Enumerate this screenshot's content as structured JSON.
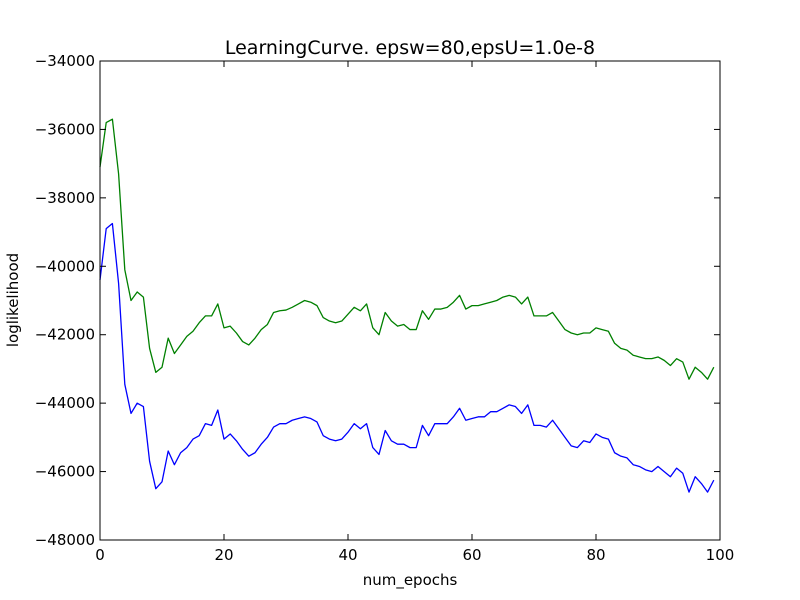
{
  "chart_data": {
    "type": "line",
    "title": "LearningCurve. epsw=80,epsU=1.0e-8",
    "xlabel": "num_epochs",
    "ylabel": "loglikelihood",
    "xlim": [
      0,
      100
    ],
    "ylim": [
      -48000,
      -34000
    ],
    "xticks": [
      0,
      20,
      40,
      60,
      80,
      100
    ],
    "yticks": [
      -48000,
      -46000,
      -44000,
      -42000,
      -40000,
      -38000,
      -36000,
      -34000
    ],
    "xtick_labels": [
      "0",
      "20",
      "40",
      "60",
      "80",
      "100"
    ],
    "ytick_labels": [
      "−48000",
      "−46000",
      "−44000",
      "−42000",
      "−40000",
      "−38000",
      "−36000",
      "−34000"
    ],
    "grid": false,
    "legend": "none",
    "series": [
      {
        "color": "#0000ff",
        "x": [
          0,
          1,
          2,
          3,
          4,
          5,
          6,
          7,
          8,
          9,
          10,
          11,
          12,
          13,
          14,
          15,
          16,
          17,
          18,
          19,
          20,
          21,
          22,
          23,
          24,
          25,
          26,
          27,
          28,
          29,
          30,
          31,
          32,
          33,
          34,
          35,
          36,
          37,
          38,
          39,
          40,
          41,
          42,
          43,
          44,
          45,
          46,
          47,
          48,
          49,
          50,
          51,
          52,
          53,
          54,
          55,
          56,
          57,
          58,
          59,
          60,
          61,
          62,
          63,
          64,
          65,
          66,
          67,
          68,
          69,
          70,
          71,
          72,
          73,
          74,
          75,
          76,
          77,
          78,
          79,
          80,
          81,
          82,
          83,
          84,
          85,
          86,
          87,
          88,
          89,
          90,
          91,
          92,
          93,
          94,
          95,
          96,
          97,
          98,
          99
        ],
        "y": [
          -40400,
          -38900,
          -38750,
          -40500,
          -43450,
          -44300,
          -44000,
          -44100,
          -45700,
          -46500,
          -46300,
          -45400,
          -45800,
          -45450,
          -45300,
          -45050,
          -44950,
          -44600,
          -44650,
          -44200,
          -45050,
          -44900,
          -45100,
          -45350,
          -45550,
          -45450,
          -45200,
          -45000,
          -44700,
          -44600,
          -44600,
          -44500,
          -44450,
          -44400,
          -44450,
          -44550,
          -44950,
          -45050,
          -45100,
          -45050,
          -44850,
          -44600,
          -44750,
          -44600,
          -45300,
          -45500,
          -44800,
          -45100,
          -45200,
          -45200,
          -45300,
          -45300,
          -44650,
          -44950,
          -44600,
          -44600,
          -44600,
          -44400,
          -44150,
          -44500,
          -44450,
          -44400,
          -44400,
          -44250,
          -44250,
          -44150,
          -44050,
          -44100,
          -44300,
          -44050,
          -44650,
          -44650,
          -44700,
          -44500,
          -44750,
          -45000,
          -45250,
          -45300,
          -45100,
          -45150,
          -44900,
          -45000,
          -45050,
          -45450,
          -45550,
          -45600,
          -45800,
          -45850,
          -45950,
          -46000,
          -45850,
          -46000,
          -46150,
          -45900,
          -46050,
          -46600,
          -46150,
          -46350,
          -46600,
          -46250
        ]
      },
      {
        "color": "#008000",
        "x": [
          0,
          1,
          2,
          3,
          4,
          5,
          6,
          7,
          8,
          9,
          10,
          11,
          12,
          13,
          14,
          15,
          16,
          17,
          18,
          19,
          20,
          21,
          22,
          23,
          24,
          25,
          26,
          27,
          28,
          29,
          30,
          31,
          32,
          33,
          34,
          35,
          36,
          37,
          38,
          39,
          40,
          41,
          42,
          43,
          44,
          45,
          46,
          47,
          48,
          49,
          50,
          51,
          52,
          53,
          54,
          55,
          56,
          57,
          58,
          59,
          60,
          61,
          62,
          63,
          64,
          65,
          66,
          67,
          68,
          69,
          70,
          71,
          72,
          73,
          74,
          75,
          76,
          77,
          78,
          79,
          80,
          81,
          82,
          83,
          84,
          85,
          86,
          87,
          88,
          89,
          90,
          91,
          92,
          93,
          94,
          95,
          96,
          97,
          98,
          99
        ],
        "y": [
          -37100,
          -35800,
          -35700,
          -37300,
          -40100,
          -41000,
          -40750,
          -40900,
          -42400,
          -43100,
          -42950,
          -42100,
          -42550,
          -42300,
          -42050,
          -41900,
          -41650,
          -41450,
          -41450,
          -41100,
          -41800,
          -41750,
          -41950,
          -42200,
          -42300,
          -42100,
          -41850,
          -41700,
          -41350,
          -41300,
          -41280,
          -41200,
          -41100,
          -41000,
          -41050,
          -41150,
          -41500,
          -41600,
          -41650,
          -41600,
          -41400,
          -41200,
          -41300,
          -41100,
          -41800,
          -42000,
          -41350,
          -41600,
          -41750,
          -41700,
          -41850,
          -41850,
          -41300,
          -41550,
          -41250,
          -41250,
          -41200,
          -41050,
          -40850,
          -41250,
          -41150,
          -41150,
          -41100,
          -41050,
          -41000,
          -40900,
          -40850,
          -40900,
          -41100,
          -40900,
          -41450,
          -41450,
          -41450,
          -41350,
          -41600,
          -41850,
          -41950,
          -42000,
          -41950,
          -41950,
          -41800,
          -41850,
          -41900,
          -42250,
          -42400,
          -42450,
          -42600,
          -42650,
          -42700,
          -42700,
          -42650,
          -42750,
          -42900,
          -42700,
          -42800,
          -43300,
          -42950,
          -43100,
          -43300,
          -42950
        ]
      }
    ]
  }
}
